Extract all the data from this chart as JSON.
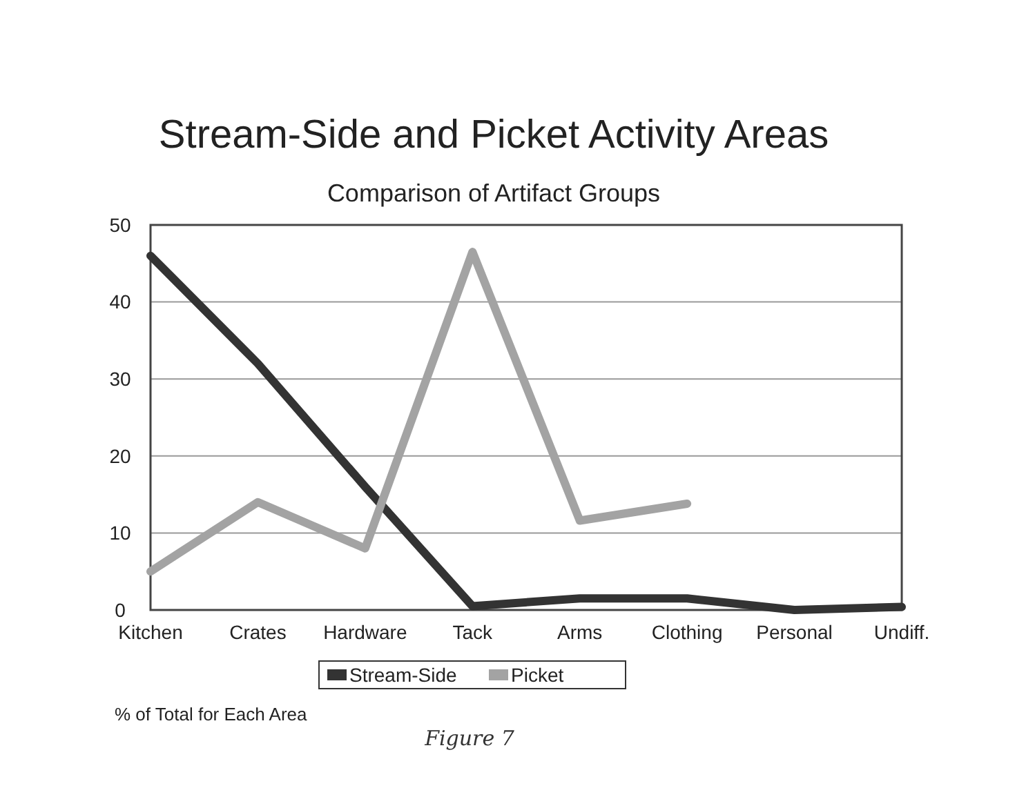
{
  "chart_data": {
    "type": "line",
    "title": "Stream-Side and Picket Activity Areas",
    "subtitle": "Comparison of Artifact Groups",
    "categories": [
      "Kitchen",
      "Crates",
      "Hardware",
      "Tack",
      "Arms",
      "Clothing",
      "Personal",
      "Undiff."
    ],
    "series": [
      {
        "name": "Stream-Side",
        "color": "#333333",
        "values": [
          46,
          32,
          16,
          0.5,
          1.5,
          1.5,
          0,
          0.4
        ]
      },
      {
        "name": "Picket",
        "color": "#a3a3a3",
        "values": [
          5,
          14,
          8,
          46.5,
          11.6,
          13.8,
          null,
          null
        ]
      }
    ],
    "ylim": [
      0,
      50
    ],
    "yticks": [
      0,
      10,
      20,
      30,
      40,
      50
    ],
    "grid": "y",
    "legend": "bottom",
    "marker": "none",
    "line_style": "solid",
    "annotations": [
      "% of Total for Each Area",
      "Figure 7"
    ]
  }
}
